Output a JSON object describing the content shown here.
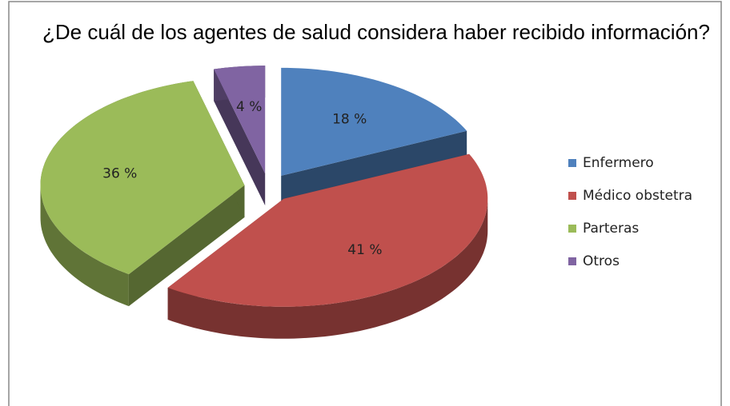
{
  "chart_data": {
    "type": "pie3d",
    "title": "¿De cuál de los agentes de salud considera haber recibido información?",
    "categories": [
      "Enfermero",
      "Médico obstetra",
      "Parteras",
      "Otros"
    ],
    "values": [
      18,
      41,
      36,
      4
    ],
    "value_labels": [
      "18 %",
      "41 %",
      "36 %",
      "4 %"
    ],
    "colors": [
      "#4f81bd",
      "#c0504d",
      "#9bbb59",
      "#8064a2"
    ],
    "legend": "right"
  }
}
